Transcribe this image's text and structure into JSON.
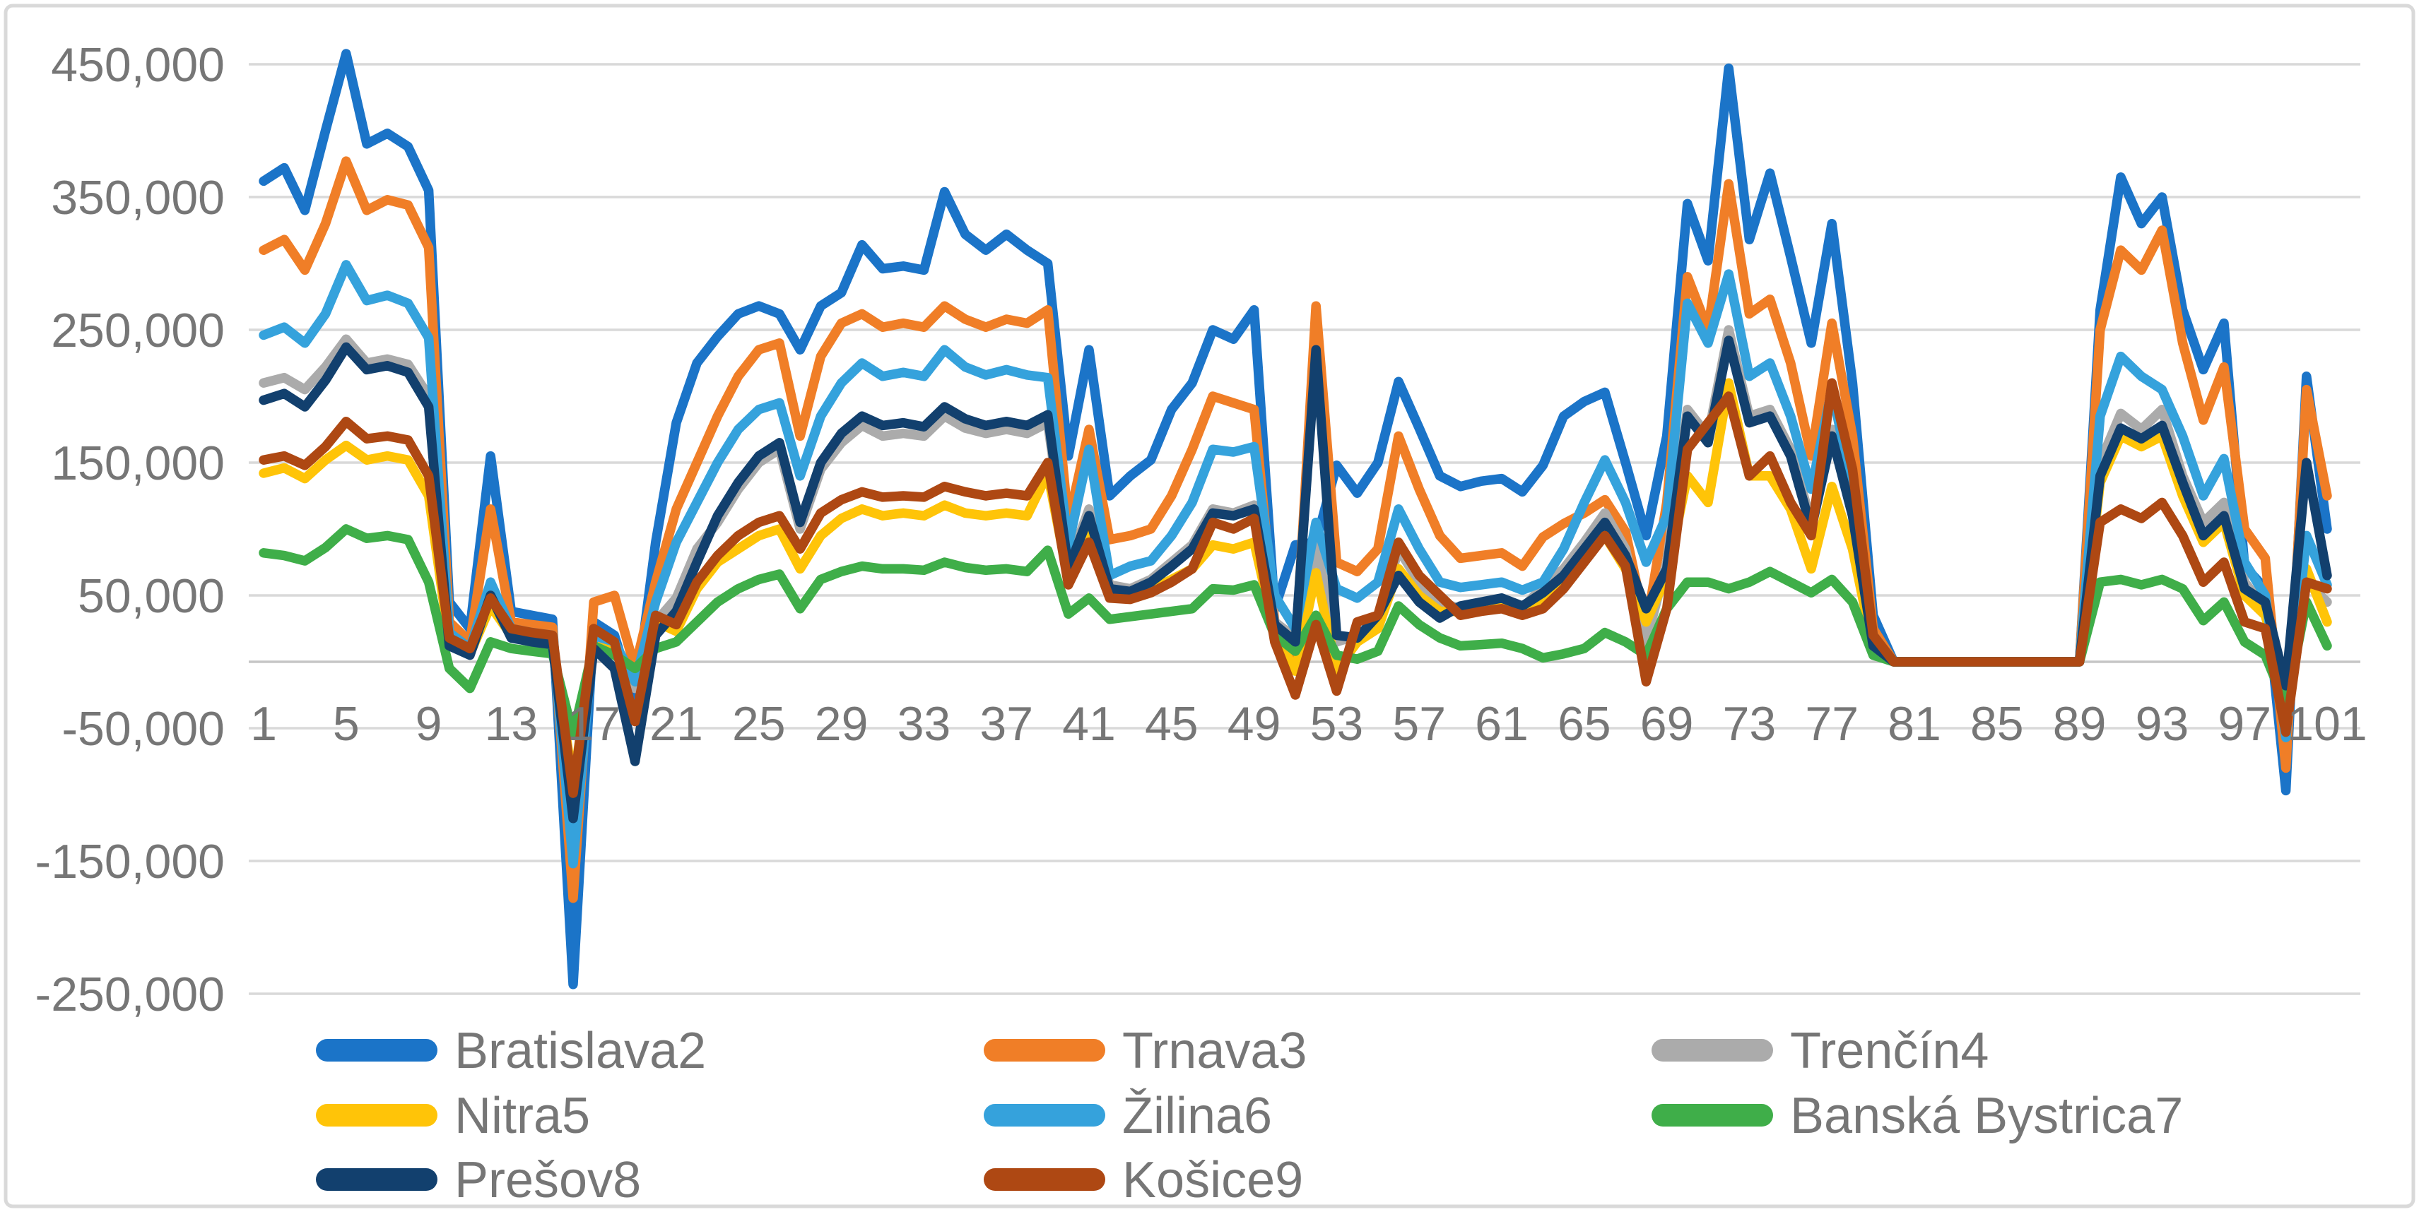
{
  "chart_data": {
    "type": "line",
    "title": "",
    "xlabel": "",
    "ylabel": "",
    "grid": true,
    "legend_position": "bottom",
    "ylim": [
      -250000,
      450000
    ],
    "y_gridlines": [
      450000,
      350000,
      250000,
      150000,
      50000,
      -50000,
      -150000,
      -250000
    ],
    "y_tick_labels": [
      "450,000",
      "350,000",
      "250,000",
      "150,000",
      "50,000",
      "-50,000",
      "-150,000",
      "-250,000"
    ],
    "x_tick_values": [
      1,
      5,
      9,
      13,
      17,
      21,
      25,
      29,
      33,
      37,
      41,
      45,
      49,
      53,
      57,
      61,
      65,
      69,
      73,
      77,
      81,
      85,
      89,
      93,
      97,
      101
    ],
    "x_tick_labels": [
      "1",
      "5",
      "9",
      "13",
      "17",
      "21",
      "25",
      "29",
      "33",
      "37",
      "41",
      "45",
      "49",
      "53",
      "57",
      "61",
      "65",
      "69",
      "73",
      "77",
      "81",
      "85",
      "89",
      "93",
      "97",
      "101"
    ],
    "x_range": [
      1,
      101
    ],
    "series": [
      {
        "name": "Bratislava2",
        "color": "#1B74C8",
        "values": [
          362000,
          372000,
          340000,
          400000,
          458000,
          390000,
          398000,
          388000,
          355000,
          45000,
          25000,
          155000,
          38000,
          35000,
          32000,
          -243000,
          30000,
          20000,
          -30000,
          90000,
          180000,
          225000,
          245000,
          262000,
          268000,
          262000,
          235000,
          268000,
          278000,
          314000,
          296000,
          298000,
          295000,
          354000,
          322000,
          310000,
          322000,
          310000,
          300000,
          155000,
          235000,
          125000,
          140000,
          152000,
          190000,
          210000,
          250000,
          243000,
          265000,
          40000,
          88000,
          90000,
          148000,
          127000,
          150000,
          211000,
          176000,
          140000,
          132000,
          136000,
          138000,
          128000,
          148000,
          185000,
          196000,
          203000,
          150000,
          95000,
          170000,
          345000,
          302000,
          447000,
          318000,
          368000,
          305000,
          240000,
          330000,
          210000,
          35000,
          0,
          0,
          0,
          0,
          0,
          0,
          0,
          0,
          0,
          0,
          265000,
          365000,
          330000,
          350000,
          265000,
          220000,
          255000,
          72000,
          55000,
          -97000,
          215000,
          100000
        ]
      },
      {
        "name": "Trnava3",
        "color": "#F07E27",
        "values": [
          310000,
          318000,
          295000,
          330000,
          377000,
          340000,
          348000,
          344000,
          312000,
          30000,
          15000,
          115000,
          30000,
          28000,
          26000,
          -178000,
          45000,
          50000,
          -5000,
          60000,
          115000,
          150000,
          185000,
          215000,
          235000,
          240000,
          170000,
          230000,
          255000,
          262000,
          252000,
          255000,
          252000,
          268000,
          258000,
          252000,
          258000,
          255000,
          265000,
          105000,
          175000,
          92000,
          95000,
          100000,
          125000,
          160000,
          200000,
          195000,
          190000,
          30000,
          5000,
          268000,
          75000,
          68000,
          85000,
          170000,
          130000,
          95000,
          78000,
          80000,
          82000,
          72000,
          94000,
          104000,
          112000,
          122000,
          98000,
          25000,
          120000,
          290000,
          250000,
          360000,
          262000,
          273000,
          225000,
          155000,
          255000,
          170000,
          25000,
          0,
          0,
          0,
          0,
          0,
          0,
          0,
          0,
          0,
          0,
          250000,
          310000,
          295000,
          325000,
          240000,
          182000,
          222000,
          100000,
          78000,
          -80000,
          205000,
          125000
        ]
      },
      {
        "name": "Trenčín4",
        "color": "#ABABAB",
        "values": [
          210000,
          214000,
          205000,
          222000,
          243000,
          225000,
          228000,
          224000,
          200000,
          15000,
          8000,
          55000,
          22000,
          18000,
          16000,
          -110000,
          15000,
          10000,
          -20000,
          30000,
          48000,
          85000,
          105000,
          130000,
          150000,
          160000,
          100000,
          145000,
          165000,
          178000,
          170000,
          172000,
          170000,
          185000,
          176000,
          172000,
          175000,
          172000,
          180000,
          72000,
          115000,
          58000,
          55000,
          62000,
          75000,
          88000,
          115000,
          112000,
          118000,
          30000,
          18000,
          88000,
          15000,
          20000,
          30000,
          85000,
          60000,
          45000,
          40000,
          42000,
          45000,
          40000,
          57000,
          70000,
          90000,
          112000,
          85000,
          15000,
          75000,
          190000,
          170000,
          250000,
          185000,
          190000,
          160000,
          105000,
          175000,
          115000,
          15000,
          0,
          0,
          0,
          0,
          0,
          0,
          0,
          0,
          0,
          0,
          150000,
          187000,
          175000,
          190000,
          140000,
          105000,
          120000,
          60000,
          40000,
          -25000,
          60000,
          45000
        ]
      },
      {
        "name": "Nitra5",
        "color": "#FFC408",
        "values": [
          142000,
          146000,
          138000,
          152000,
          163000,
          152000,
          155000,
          152000,
          125000,
          14000,
          6000,
          42000,
          20000,
          17000,
          15000,
          -92000,
          12000,
          8000,
          -15000,
          30000,
          23000,
          55000,
          75000,
          85000,
          95000,
          100000,
          70000,
          95000,
          108000,
          115000,
          110000,
          112000,
          110000,
          118000,
          112000,
          110000,
          112000,
          110000,
          142000,
          62000,
          95000,
          50000,
          50000,
          54000,
          62000,
          70000,
          88000,
          85000,
          90000,
          22000,
          -7000,
          67000,
          -6000,
          15000,
          25000,
          70000,
          50000,
          38000,
          38000,
          40000,
          42000,
          38000,
          48000,
          60000,
          78000,
          95000,
          70000,
          30000,
          65000,
          140000,
          120000,
          210000,
          140000,
          140000,
          115000,
          70000,
          132000,
          85000,
          10000,
          0,
          0,
          0,
          0,
          0,
          0,
          0,
          0,
          0,
          0,
          135000,
          170000,
          162000,
          170000,
          125000,
          90000,
          105000,
          50000,
          35000,
          -20000,
          70000,
          30000
        ]
      },
      {
        "name": "Žilina6",
        "color": "#35A2DC",
        "values": [
          246000,
          252000,
          240000,
          262000,
          299000,
          272000,
          276000,
          270000,
          244000,
          22000,
          10000,
          60000,
          25000,
          22000,
          20000,
          -152000,
          20000,
          15000,
          -15000,
          45000,
          90000,
          120000,
          150000,
          175000,
          190000,
          195000,
          140000,
          185000,
          210000,
          225000,
          215000,
          218000,
          215000,
          235000,
          222000,
          216000,
          220000,
          216000,
          214000,
          88000,
          160000,
          65000,
          72000,
          76000,
          95000,
          120000,
          160000,
          158000,
          162000,
          50000,
          25000,
          105000,
          55000,
          48000,
          60000,
          115000,
          85000,
          60000,
          56000,
          58000,
          60000,
          54000,
          60000,
          85000,
          120000,
          152000,
          120000,
          75000,
          110000,
          270000,
          240000,
          292000,
          215000,
          225000,
          185000,
          130000,
          205000,
          130000,
          20000,
          0,
          0,
          0,
          0,
          0,
          0,
          0,
          0,
          0,
          0,
          185000,
          230000,
          215000,
          205000,
          170000,
          125000,
          153000,
          75000,
          50000,
          -57000,
          95000,
          58000
        ]
      },
      {
        "name": "Banská Bystrica7",
        "color": "#3FAE49",
        "values": [
          82000,
          80000,
          76000,
          86000,
          100000,
          93000,
          95000,
          92000,
          60000,
          -5000,
          -20000,
          15000,
          10000,
          8000,
          6000,
          -55000,
          12000,
          5000,
          -5000,
          10000,
          15000,
          30000,
          45000,
          55000,
          62000,
          66000,
          40000,
          62000,
          68000,
          72000,
          70000,
          70000,
          69000,
          75000,
          71000,
          69000,
          70000,
          68000,
          84000,
          36000,
          48000,
          32000,
          34000,
          36000,
          38000,
          40000,
          55000,
          54000,
          58000,
          20000,
          8000,
          35000,
          5000,
          2000,
          8000,
          42000,
          28000,
          18000,
          12000,
          13000,
          14000,
          10000,
          3000,
          6000,
          10000,
          22000,
          15000,
          5000,
          40000,
          60000,
          60000,
          55000,
          60000,
          68000,
          60000,
          52000,
          62000,
          45000,
          5000,
          0,
          0,
          0,
          0,
          0,
          0,
          0,
          0,
          0,
          0,
          60000,
          62000,
          58000,
          62000,
          55000,
          31000,
          45000,
          15000,
          5000,
          -33000,
          45000,
          12000
        ]
      },
      {
        "name": "Prešov8",
        "color": "#12406E",
        "values": [
          197000,
          202000,
          192000,
          212000,
          237000,
          220000,
          223000,
          218000,
          192000,
          12000,
          5000,
          50000,
          18000,
          15000,
          13000,
          -118000,
          10000,
          -5000,
          -75000,
          20000,
          38000,
          75000,
          110000,
          135000,
          155000,
          165000,
          105000,
          150000,
          172000,
          185000,
          178000,
          180000,
          177000,
          192000,
          183000,
          178000,
          181000,
          178000,
          186000,
          70000,
          110000,
          55000,
          53000,
          60000,
          72000,
          85000,
          112000,
          110000,
          115000,
          28000,
          15000,
          235000,
          20000,
          18000,
          35000,
          65000,
          45000,
          33000,
          42000,
          45000,
          48000,
          42000,
          52000,
          65000,
          85000,
          105000,
          80000,
          40000,
          70000,
          185000,
          165000,
          242000,
          180000,
          185000,
          155000,
          100000,
          170000,
          110000,
          12000,
          0,
          0,
          0,
          0,
          0,
          0,
          0,
          0,
          0,
          0,
          140000,
          176000,
          168000,
          178000,
          135000,
          95000,
          110000,
          55000,
          45000,
          -18000,
          150000,
          65000
        ]
      },
      {
        "name": "Košice9",
        "color": "#AE4813",
        "values": [
          152000,
          155000,
          148000,
          162000,
          181000,
          168000,
          170000,
          167000,
          140000,
          18000,
          10000,
          48000,
          25000,
          22000,
          20000,
          -99000,
          25000,
          15000,
          -45000,
          35000,
          28000,
          60000,
          80000,
          95000,
          105000,
          110000,
          85000,
          112000,
          122000,
          128000,
          124000,
          125000,
          124000,
          132000,
          128000,
          125000,
          127000,
          125000,
          150000,
          58000,
          90000,
          48000,
          47000,
          52000,
          60000,
          70000,
          105000,
          100000,
          108000,
          15000,
          -25000,
          28000,
          -22000,
          30000,
          35000,
          90000,
          65000,
          50000,
          35000,
          38000,
          40000,
          35000,
          40000,
          55000,
          75000,
          95000,
          72000,
          -15000,
          40000,
          160000,
          180000,
          200000,
          140000,
          155000,
          120000,
          95000,
          210000,
          145000,
          20000,
          0,
          0,
          0,
          0,
          0,
          0,
          0,
          0,
          0,
          0,
          105000,
          115000,
          108000,
          120000,
          95000,
          60000,
          75000,
          30000,
          25000,
          -53000,
          60000,
          55000
        ]
      }
    ],
    "legend": {
      "columns": 3,
      "entries": [
        "Bratislava2",
        "Trnava3",
        "Trenčín4",
        "Nitra5",
        "Žilina6",
        "Banská Bystrica7",
        "Prešov8",
        "Košice9"
      ]
    },
    "colors": {
      "gridline": "#D9D9D9",
      "axis_line": "#C6C6C6",
      "tick_label": "#767676",
      "legend_label": "#767676",
      "background": "#FFFFFF",
      "frame_border": "#D9D9D9"
    }
  }
}
